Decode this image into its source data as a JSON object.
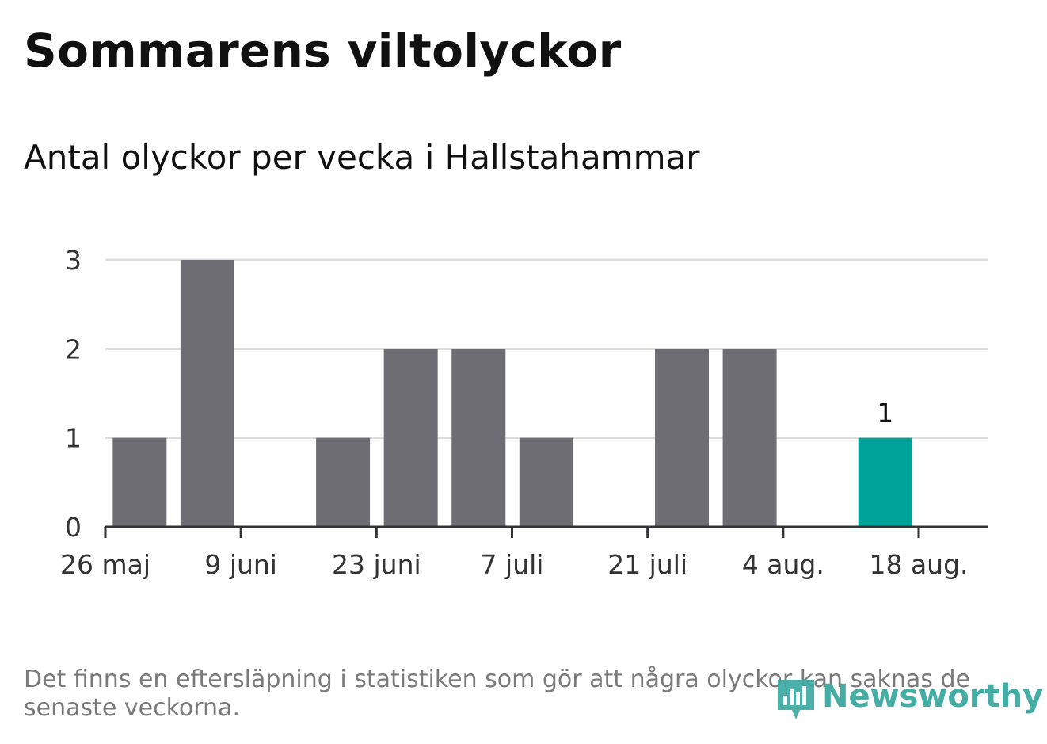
{
  "title": "Sommarens viltolyckor",
  "subtitle": "Antal olyckor per vecka i Hallstahammar",
  "note": "Det finns en eftersläpning i statistiken som gör att några olyckor kan saknas de senaste veckorna.",
  "brand": {
    "name": "Newsworthy",
    "color": "#3aa9a0"
  },
  "colors": {
    "bar": "#6e6d73",
    "highlight": "#00a39a",
    "grid": "#dddddd",
    "axis": "#333333",
    "text": "#111111"
  },
  "chart_data": {
    "type": "bar",
    "x_ticks": [
      "26 maj",
      "9 juni",
      "23 juni",
      "7 juli",
      "21 juli",
      "4 aug.",
      "18 aug."
    ],
    "x_tick_dates": [
      "2019-05-26",
      "2019-06-09",
      "2019-06-23",
      "2019-07-07",
      "2019-07-21",
      "2019-08-04",
      "2019-08-18"
    ],
    "weeks": [
      "2019-06-02",
      "2019-06-09",
      "2019-06-16",
      "2019-06-23",
      "2019-06-30",
      "2019-07-07",
      "2019-07-14",
      "2019-07-21",
      "2019-07-28",
      "2019-08-04",
      "2019-08-11",
      "2019-08-18"
    ],
    "values": [
      1,
      3,
      0,
      1,
      2,
      2,
      1,
      0,
      2,
      2,
      0,
      1
    ],
    "highlight_index": 11,
    "highlight_label": "1",
    "y_ticks": [
      "0",
      "1",
      "2",
      "3"
    ],
    "ylim": [
      0,
      3
    ],
    "grid": true
  }
}
